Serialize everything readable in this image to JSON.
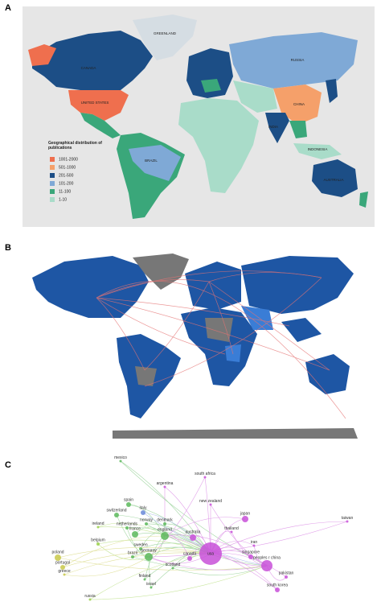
{
  "panels": [
    {
      "label": "A",
      "legend": {
        "title": "Geographical distribution of publications",
        "items": [
          {
            "label": "1001-2000",
            "color": "#ef6f4e"
          },
          {
            "label": "501-1000",
            "color": "#f5a06a"
          },
          {
            "label": "201-500",
            "color": "#1c4e86"
          },
          {
            "label": "101-200",
            "color": "#7fa9d6"
          },
          {
            "label": "11-100",
            "color": "#3aa77a"
          },
          {
            "label": "1-10",
            "color": "#a9dcc9"
          }
        ]
      },
      "country_labels": [
        "GREENLAND",
        "CANADA",
        "UNITED STATES",
        "RUSSIA",
        "CHINA",
        "INDIA",
        "INDONESIA",
        "BRAZIL",
        "AUSTRALIA"
      ]
    },
    {
      "label": "B"
    },
    {
      "label": "C",
      "nodes": [
        "mexico",
        "argentina",
        "south africa",
        "new zealand",
        "spain",
        "switzerland",
        "italy",
        "denmark",
        "netherlands",
        "norway",
        "france",
        "england",
        "australia",
        "ireland",
        "belgium",
        "brazil",
        "sweden",
        "germany",
        "poland",
        "portugal",
        "greece",
        "scotland",
        "finland",
        "israel",
        "russia",
        "canada",
        "usa",
        "thailand",
        "japan",
        "taiwan",
        "iran",
        "singapore",
        "peoples r china",
        "pakistan",
        "south korea"
      ]
    }
  ]
}
